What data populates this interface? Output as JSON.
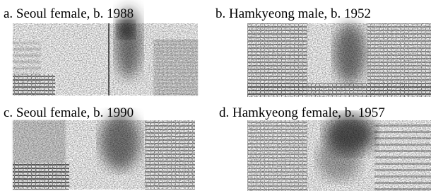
{
  "panels": [
    {
      "label": "a. Seoul female, b. 1988"
    },
    {
      "label": "b. Hamkyeong male, b. 1952"
    },
    {
      "label": "c. Seoul female, b. 1990"
    },
    {
      "label": "d. Hamkyeong female, b. 1957"
    }
  ]
}
